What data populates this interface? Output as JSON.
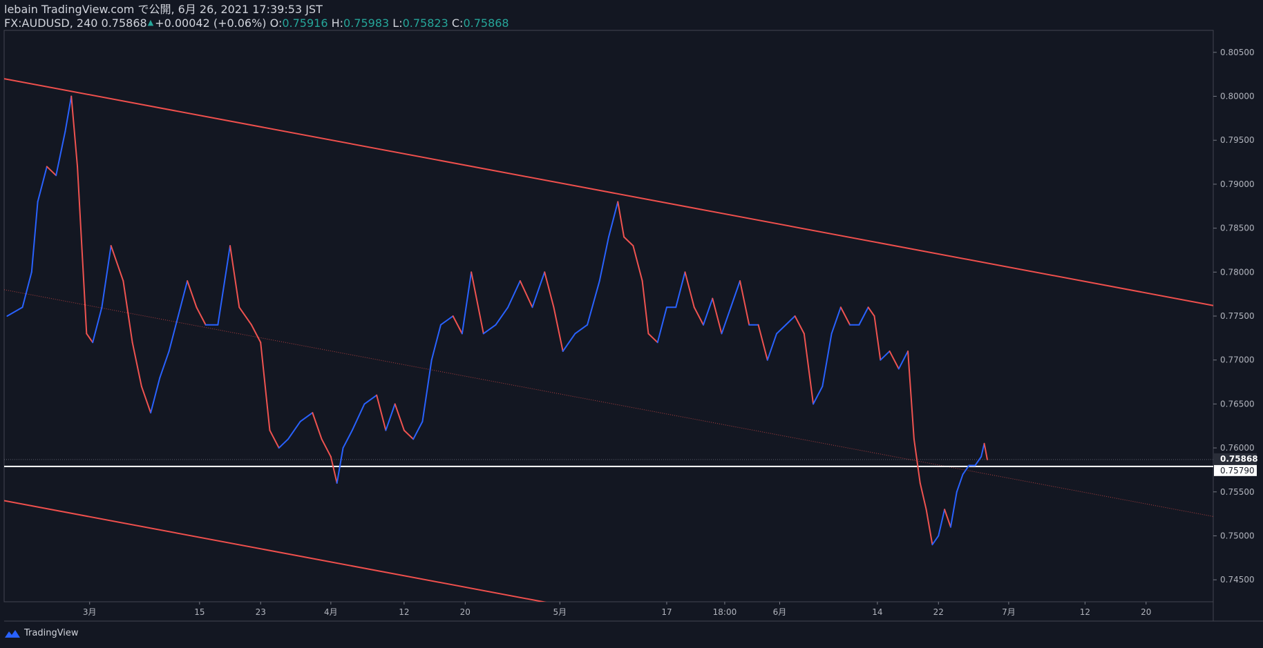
{
  "header": {
    "line1": "lebain TradingView.com で公開, 6月 26, 2021 17:39:53 JST",
    "symbol": "FX:AUDUSD, 240",
    "last": "0.75868",
    "change": "+0.00042 (+0.06%)",
    "o_label": "O:",
    "o_value": "0.75916",
    "h_label": "H:",
    "h_value": "0.75983",
    "l_label": "L:",
    "l_value": "0.75823",
    "c_label": "C:",
    "c_value": "0.75868"
  },
  "footer": {
    "brand": "TradingView"
  },
  "colors": {
    "background": "#131722",
    "up": "#2962ff",
    "down": "#ef5350",
    "trendline": "#f0504d",
    "horizontal_line": "#ffffff",
    "axis_text": "#b2b5be",
    "ohlc_value": "#26a69a"
  },
  "chart_data": {
    "type": "line",
    "symbol": "FX:AUDUSD",
    "interval": "240",
    "y_ticks": [
      "0.80500",
      "0.80000",
      "0.79500",
      "0.79000",
      "0.78500",
      "0.78000",
      "0.77500",
      "0.77000",
      "0.76500",
      "0.76000",
      "0.75500",
      "0.75000",
      "0.74500"
    ],
    "ylim": [
      0.7425,
      0.8075
    ],
    "x_ticks": [
      {
        "label": "3月",
        "bar": 27
      },
      {
        "label": "15",
        "bar": 63
      },
      {
        "label": "23",
        "bar": 83
      },
      {
        "label": "4月",
        "bar": 106
      },
      {
        "label": "12",
        "bar": 130
      },
      {
        "label": "20",
        "bar": 150
      },
      {
        "label": "5月",
        "bar": 181
      },
      {
        "label": "17",
        "bar": 216
      },
      {
        "label": "18:00",
        "bar": 235
      },
      {
        "label": "6月",
        "bar": 253
      },
      {
        "label": "14",
        "bar": 285
      },
      {
        "label": "22",
        "bar": 305
      },
      {
        "label": "7月",
        "bar": 328
      },
      {
        "label": "12",
        "bar": 353
      },
      {
        "label": "20",
        "bar": 373
      }
    ],
    "bar_range": [
      -1,
      395
    ],
    "price_series": [
      {
        "bar": 0,
        "value": 0.775
      },
      {
        "bar": 5,
        "value": 0.776
      },
      {
        "bar": 8,
        "value": 0.78
      },
      {
        "bar": 10,
        "value": 0.788
      },
      {
        "bar": 13,
        "value": 0.792
      },
      {
        "bar": 16,
        "value": 0.791
      },
      {
        "bar": 19,
        "value": 0.796
      },
      {
        "bar": 21,
        "value": 0.8
      },
      {
        "bar": 23,
        "value": 0.792
      },
      {
        "bar": 26,
        "value": 0.773
      },
      {
        "bar": 28,
        "value": 0.772
      },
      {
        "bar": 31,
        "value": 0.776
      },
      {
        "bar": 34,
        "value": 0.783
      },
      {
        "bar": 38,
        "value": 0.779
      },
      {
        "bar": 41,
        "value": 0.772
      },
      {
        "bar": 44,
        "value": 0.767
      },
      {
        "bar": 47,
        "value": 0.764
      },
      {
        "bar": 50,
        "value": 0.768
      },
      {
        "bar": 53,
        "value": 0.771
      },
      {
        "bar": 56,
        "value": 0.775
      },
      {
        "bar": 59,
        "value": 0.779
      },
      {
        "bar": 62,
        "value": 0.776
      },
      {
        "bar": 65,
        "value": 0.774
      },
      {
        "bar": 69,
        "value": 0.774
      },
      {
        "bar": 73,
        "value": 0.783
      },
      {
        "bar": 76,
        "value": 0.776
      },
      {
        "bar": 80,
        "value": 0.774
      },
      {
        "bar": 83,
        "value": 0.772
      },
      {
        "bar": 86,
        "value": 0.762
      },
      {
        "bar": 89,
        "value": 0.76
      },
      {
        "bar": 92,
        "value": 0.761
      },
      {
        "bar": 96,
        "value": 0.763
      },
      {
        "bar": 100,
        "value": 0.764
      },
      {
        "bar": 103,
        "value": 0.761
      },
      {
        "bar": 106,
        "value": 0.759
      },
      {
        "bar": 108,
        "value": 0.756
      },
      {
        "bar": 110,
        "value": 0.76
      },
      {
        "bar": 113,
        "value": 0.762
      },
      {
        "bar": 117,
        "value": 0.765
      },
      {
        "bar": 121,
        "value": 0.766
      },
      {
        "bar": 124,
        "value": 0.762
      },
      {
        "bar": 127,
        "value": 0.765
      },
      {
        "bar": 130,
        "value": 0.762
      },
      {
        "bar": 133,
        "value": 0.761
      },
      {
        "bar": 136,
        "value": 0.763
      },
      {
        "bar": 139,
        "value": 0.77
      },
      {
        "bar": 142,
        "value": 0.774
      },
      {
        "bar": 146,
        "value": 0.775
      },
      {
        "bar": 149,
        "value": 0.773
      },
      {
        "bar": 152,
        "value": 0.78
      },
      {
        "bar": 156,
        "value": 0.773
      },
      {
        "bar": 160,
        "value": 0.774
      },
      {
        "bar": 164,
        "value": 0.776
      },
      {
        "bar": 168,
        "value": 0.779
      },
      {
        "bar": 172,
        "value": 0.776
      },
      {
        "bar": 176,
        "value": 0.78
      },
      {
        "bar": 179,
        "value": 0.776
      },
      {
        "bar": 182,
        "value": 0.771
      },
      {
        "bar": 186,
        "value": 0.773
      },
      {
        "bar": 190,
        "value": 0.774
      },
      {
        "bar": 194,
        "value": 0.779
      },
      {
        "bar": 197,
        "value": 0.784
      },
      {
        "bar": 200,
        "value": 0.788
      },
      {
        "bar": 202,
        "value": 0.784
      },
      {
        "bar": 205,
        "value": 0.783
      },
      {
        "bar": 208,
        "value": 0.779
      },
      {
        "bar": 210,
        "value": 0.773
      },
      {
        "bar": 213,
        "value": 0.772
      },
      {
        "bar": 216,
        "value": 0.776
      },
      {
        "bar": 219,
        "value": 0.776
      },
      {
        "bar": 222,
        "value": 0.78
      },
      {
        "bar": 225,
        "value": 0.776
      },
      {
        "bar": 228,
        "value": 0.774
      },
      {
        "bar": 231,
        "value": 0.777
      },
      {
        "bar": 234,
        "value": 0.773
      },
      {
        "bar": 237,
        "value": 0.776
      },
      {
        "bar": 240,
        "value": 0.779
      },
      {
        "bar": 243,
        "value": 0.774
      },
      {
        "bar": 246,
        "value": 0.774
      },
      {
        "bar": 249,
        "value": 0.77
      },
      {
        "bar": 252,
        "value": 0.773
      },
      {
        "bar": 255,
        "value": 0.774
      },
      {
        "bar": 258,
        "value": 0.775
      },
      {
        "bar": 261,
        "value": 0.773
      },
      {
        "bar": 264,
        "value": 0.765
      },
      {
        "bar": 267,
        "value": 0.767
      },
      {
        "bar": 270,
        "value": 0.773
      },
      {
        "bar": 273,
        "value": 0.776
      },
      {
        "bar": 276,
        "value": 0.774
      },
      {
        "bar": 279,
        "value": 0.774
      },
      {
        "bar": 282,
        "value": 0.776
      },
      {
        "bar": 284,
        "value": 0.775
      },
      {
        "bar": 286,
        "value": 0.77
      },
      {
        "bar": 289,
        "value": 0.771
      },
      {
        "bar": 292,
        "value": 0.769
      },
      {
        "bar": 295,
        "value": 0.771
      },
      {
        "bar": 297,
        "value": 0.761
      },
      {
        "bar": 299,
        "value": 0.756
      },
      {
        "bar": 301,
        "value": 0.753
      },
      {
        "bar": 303,
        "value": 0.749
      },
      {
        "bar": 305,
        "value": 0.75
      },
      {
        "bar": 307,
        "value": 0.753
      },
      {
        "bar": 309,
        "value": 0.751
      },
      {
        "bar": 311,
        "value": 0.755
      },
      {
        "bar": 313,
        "value": 0.757
      },
      {
        "bar": 315,
        "value": 0.758
      },
      {
        "bar": 317,
        "value": 0.758
      },
      {
        "bar": 319,
        "value": 0.759
      },
      {
        "bar": 320,
        "value": 0.7605
      },
      {
        "bar": 321,
        "value": 0.75868
      }
    ],
    "upper_trendline": [
      {
        "bar": -1,
        "value": 0.802
      },
      {
        "bar": 395,
        "value": 0.7762
      }
    ],
    "lower_trendline": [
      {
        "bar": -1,
        "value": 0.754
      },
      {
        "bar": 177,
        "value": 0.7424
      }
    ],
    "mid_dotted_line": [
      {
        "bar": -1,
        "value": 0.778
      },
      {
        "bar": 395,
        "value": 0.7522
      }
    ],
    "horizontal_level": {
      "value": 0.7579,
      "label": "0.75790"
    },
    "last_price": {
      "value": 0.75868,
      "label": "0.75868"
    }
  }
}
